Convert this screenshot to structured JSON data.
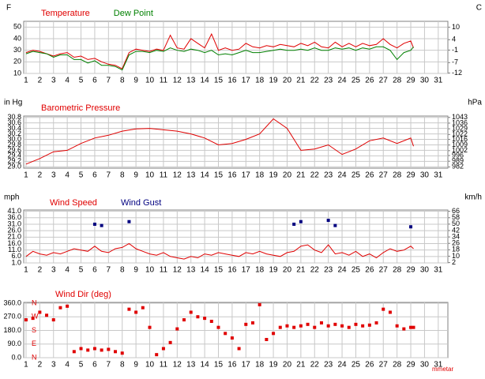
{
  "chart_data": [
    {
      "type": "line",
      "ylabel": "F",
      "y2label": "C",
      "xlim": [
        0.83,
        31.7
      ],
      "xticks": [
        1,
        2,
        3,
        4,
        5,
        6,
        7,
        8,
        9,
        10,
        11,
        12,
        13,
        14,
        15,
        16,
        17,
        18,
        19,
        20,
        21,
        22,
        23,
        24,
        25,
        26,
        27,
        28,
        29,
        30,
        31
      ],
      "ylim": [
        10,
        55
      ],
      "yticks": [
        10,
        20,
        30,
        40,
        50
      ],
      "y2lim": [
        -12.2,
        12.8
      ],
      "y2ticks": [
        -12,
        -7,
        -1,
        4,
        10
      ],
      "grid": true,
      "x": [
        1,
        1.5,
        2,
        2.5,
        3,
        3.5,
        4,
        4.5,
        5,
        5.5,
        6,
        6.5,
        7,
        7.5,
        8,
        8.5,
        9,
        9.5,
        10,
        10.5,
        11,
        11.5,
        12,
        12.5,
        13,
        13.5,
        14,
        14.5,
        15,
        15.5,
        16,
        16.5,
        17,
        17.5,
        18,
        18.5,
        19,
        19.5,
        20,
        20.5,
        21,
        21.5,
        22,
        22.5,
        23,
        23.5,
        24,
        24.5,
        25,
        25.5,
        26,
        26.5,
        27,
        27.5,
        28,
        28.5,
        29,
        29.2
      ],
      "series": [
        {
          "name": "Temperature",
          "color": "#e00000",
          "values": [
            28,
            30,
            29,
            27,
            25,
            27,
            28,
            24,
            25,
            22,
            23,
            20,
            18,
            17,
            14,
            28,
            31,
            30,
            29,
            31,
            30,
            43,
            32,
            31,
            40,
            36,
            32,
            44,
            30,
            32,
            30,
            31,
            36,
            33,
            32,
            34,
            33,
            35,
            34,
            33,
            36,
            34,
            37,
            33,
            32,
            37,
            33,
            36,
            33,
            36,
            34,
            35,
            40,
            35,
            32,
            36,
            38,
            32
          ]
        },
        {
          "name": "Dew Point",
          "color": "#008000",
          "values": [
            27,
            29,
            28,
            27,
            24,
            26,
            26,
            22,
            22,
            19,
            21,
            17,
            17,
            16,
            13,
            26,
            29,
            29,
            28,
            30,
            29,
            32,
            30,
            29,
            31,
            30,
            28,
            30,
            26,
            27,
            26,
            28,
            30,
            28,
            28,
            29,
            30,
            31,
            30,
            30,
            31,
            30,
            32,
            30,
            30,
            32,
            31,
            32,
            30,
            32,
            31,
            33,
            33,
            30,
            22,
            28,
            30,
            33
          ]
        }
      ]
    },
    {
      "type": "line",
      "ylabel": "in Hg",
      "y2label": "hPa",
      "xlim": [
        0.83,
        31.7
      ],
      "xticks": [
        1,
        2,
        3,
        4,
        5,
        6,
        7,
        8,
        9,
        10,
        11,
        12,
        13,
        14,
        15,
        16,
        17,
        18,
        19,
        20,
        21,
        22,
        23,
        24,
        25,
        26,
        27,
        28,
        29,
        30,
        31
      ],
      "ylim": [
        28.95,
        30.85
      ],
      "yticks": [
        {
          "value": 29.0,
          "label": "29.0"
        },
        29.2,
        29.4,
        29.6,
        29.8,
        {
          "value": 30.0,
          "label": "30.0"
        },
        30.2,
        30.4,
        30.6,
        30.8
      ],
      "y2lim": [
        980.4,
        1044.7
      ],
      "y2ticks": [
        982,
        989,
        996,
        1002,
        1009,
        1016,
        1022,
        1029,
        1036,
        1043
      ],
      "grid": true,
      "x": [
        1,
        2,
        3,
        4,
        5,
        6,
        7,
        8,
        9,
        10,
        11,
        12,
        13,
        14,
        15,
        16,
        17,
        18,
        19,
        20,
        21,
        22,
        23,
        24,
        25,
        26,
        27,
        28,
        29,
        29.2
      ],
      "series": [
        {
          "name": "Barometric Pressure",
          "color": "#e00000",
          "values": [
            29.1,
            29.3,
            29.55,
            29.6,
            29.85,
            30.05,
            30.15,
            30.3,
            30.38,
            30.4,
            30.35,
            30.3,
            30.2,
            30.05,
            29.8,
            29.85,
            30.0,
            30.2,
            30.75,
            30.4,
            29.6,
            29.65,
            29.8,
            29.45,
            29.65,
            29.95,
            30.05,
            29.85,
            30.05,
            29.75
          ]
        }
      ]
    },
    {
      "type": "line",
      "ylabel": "mph",
      "y2label": "km/h",
      "xlim": [
        0.83,
        31.7
      ],
      "xticks": [
        1,
        2,
        3,
        4,
        5,
        6,
        7,
        8,
        9,
        10,
        11,
        12,
        13,
        14,
        15,
        16,
        17,
        18,
        19,
        20,
        21,
        22,
        23,
        24,
        25,
        26,
        27,
        28,
        29,
        30,
        31
      ],
      "ylim": [
        1,
        42
      ],
      "yticks": [
        {
          "value": 1,
          "label": "1.0"
        },
        {
          "value": 6,
          "label": "6.0"
        },
        {
          "value": 11,
          "label": "11.0"
        },
        {
          "value": 16,
          "label": "16.0"
        },
        {
          "value": 21,
          "label": "21.0"
        },
        {
          "value": 26,
          "label": "26.0"
        },
        {
          "value": 31,
          "label": "31.0"
        },
        {
          "value": 36,
          "label": "36.0"
        },
        {
          "value": 41,
          "label": "41.0"
        }
      ],
      "y2lim": [
        1.6,
        67.6
      ],
      "y2ticks": [
        2,
        10,
        18,
        26,
        34,
        42,
        50,
        58,
        66
      ],
      "grid": true,
      "x": [
        1,
        1.5,
        2,
        2.5,
        3,
        3.5,
        4,
        4.5,
        5,
        5.5,
        6,
        6.5,
        7,
        7.5,
        8,
        8.5,
        9,
        9.5,
        10,
        10.5,
        11,
        11.5,
        12,
        12.5,
        13,
        13.5,
        14,
        14.5,
        15,
        15.5,
        16,
        16.5,
        17,
        17.5,
        18,
        18.5,
        19,
        19.5,
        20,
        20.5,
        21,
        21.5,
        22,
        22.5,
        23,
        23.5,
        24,
        24.5,
        25,
        25.5,
        26,
        26.5,
        27,
        27.5,
        28,
        28.5,
        29,
        29.2
      ],
      "series": [
        {
          "name": "Wind Speed",
          "color": "#e00000",
          "style": "line",
          "values": [
            6,
            10,
            8,
            7,
            9,
            8,
            10,
            12,
            11,
            10,
            14,
            10,
            9,
            12,
            13,
            16,
            12,
            10,
            8,
            7,
            9,
            6,
            5,
            4,
            6,
            5,
            8,
            7,
            9,
            8,
            7,
            6,
            9,
            8,
            10,
            8,
            7,
            6,
            9,
            10,
            14,
            15,
            11,
            9,
            15,
            8,
            9,
            7,
            10,
            6,
            8,
            5,
            9,
            12,
            10,
            11,
            14,
            12
          ]
        },
        {
          "name": "Wind Gust",
          "color": "#000080",
          "style": "points",
          "values": [
            null,
            null,
            null,
            null,
            null,
            null,
            null,
            null,
            null,
            null,
            31,
            30,
            null,
            null,
            null,
            33,
            null,
            null,
            null,
            null,
            null,
            null,
            null,
            null,
            null,
            null,
            null,
            null,
            null,
            null,
            null,
            null,
            null,
            null,
            null,
            null,
            null,
            null,
            null,
            31,
            33,
            null,
            null,
            null,
            34,
            30,
            null,
            null,
            null,
            null,
            null,
            null,
            null,
            null,
            null,
            null,
            29,
            null
          ]
        }
      ]
    },
    {
      "type": "scatter",
      "footer": "mmetar",
      "xlim": [
        0.83,
        31.7
      ],
      "xticks": [
        1,
        2,
        3,
        4,
        5,
        6,
        7,
        8,
        9,
        10,
        11,
        12,
        13,
        14,
        15,
        16,
        17,
        18,
        19,
        20,
        21,
        22,
        23,
        24,
        25,
        26,
        27,
        28,
        29,
        30,
        31
      ],
      "ylim": [
        0,
        365
      ],
      "yticks": [
        {
          "value": 0,
          "label": "0.0"
        },
        {
          "value": 90,
          "label": "90.0"
        },
        {
          "value": 180,
          "label": "180.0"
        },
        {
          "value": 270,
          "label": "270.0"
        },
        {
          "value": 360,
          "label": "360.0"
        }
      ],
      "compass": [
        {
          "value": 0,
          "label": "N"
        },
        {
          "value": 90,
          "label": "E"
        },
        {
          "value": 180,
          "label": "S"
        },
        {
          "value": 270,
          "label": "W"
        },
        {
          "value": 360,
          "label": "N"
        }
      ],
      "grid": true,
      "x": [
        1,
        1.5,
        2,
        2.5,
        3,
        3.5,
        4,
        4.5,
        5,
        5.5,
        6,
        6.5,
        7,
        7.5,
        8,
        8.5,
        9,
        9.5,
        10,
        10.5,
        11,
        11.5,
        12,
        12.5,
        13,
        13.5,
        14,
        14.5,
        15,
        15.5,
        16,
        16.5,
        17,
        17.5,
        18,
        18.5,
        19,
        19.5,
        20,
        20.5,
        21,
        21.5,
        22,
        22.5,
        23,
        23.5,
        24,
        24.5,
        25,
        25.5,
        26,
        26.5,
        27,
        27.5,
        28,
        28.5,
        29,
        29.2
      ],
      "series": [
        {
          "name": "Wind Dir (deg)",
          "color": "#e00000",
          "values": [
            250,
            260,
            300,
            280,
            250,
            330,
            340,
            40,
            60,
            50,
            60,
            50,
            55,
            40,
            30,
            320,
            300,
            330,
            200,
            20,
            60,
            100,
            190,
            250,
            300,
            270,
            260,
            240,
            200,
            160,
            130,
            60,
            220,
            230,
            350,
            120,
            160,
            200,
            210,
            200,
            210,
            220,
            200,
            230,
            210,
            220,
            210,
            200,
            220,
            210,
            215,
            230,
            320,
            300,
            210,
            190,
            200,
            200
          ]
        }
      ]
    }
  ]
}
